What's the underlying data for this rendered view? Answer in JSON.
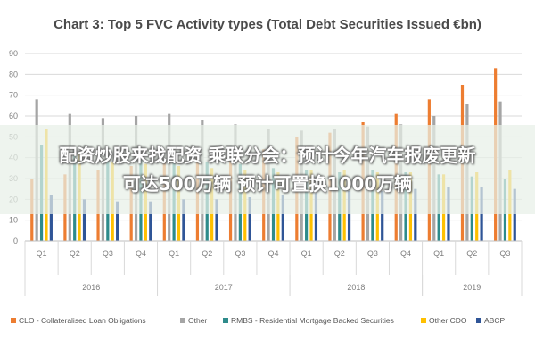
{
  "chart_data": {
    "type": "bar",
    "title": "Chart 3: Top 5 FVC Activity types (Total Debt Securities Issued €bn)",
    "ylim": [
      0,
      90
    ],
    "yticks": [
      0,
      10,
      20,
      30,
      40,
      50,
      60,
      70,
      80,
      90
    ],
    "categories": [
      "Q1",
      "Q2",
      "Q3",
      "Q4",
      "Q1",
      "Q2",
      "Q3",
      "Q4",
      "Q1",
      "Q2",
      "Q3",
      "Q4",
      "Q1",
      "Q2",
      "Q3"
    ],
    "years": [
      {
        "label": "2016",
        "quarters": 4
      },
      {
        "label": "2017",
        "quarters": 4
      },
      {
        "label": "2018",
        "quarters": 4
      },
      {
        "label": "2019",
        "quarters": 3
      }
    ],
    "grid": true,
    "legend_position": "bottom",
    "series": [
      {
        "name": "CLO - Collateralised Loan Obligations",
        "color": "#ED7D31",
        "values": [
          30,
          32,
          34,
          36,
          38,
          40,
          42,
          44,
          50,
          52,
          57,
          61,
          68,
          75,
          83
        ]
      },
      {
        "name": "Other",
        "color": "#A5A5A5",
        "values": [
          68,
          61,
          59,
          60,
          61,
          58,
          56,
          54,
          53,
          54,
          55,
          56,
          60,
          66,
          67
        ]
      },
      {
        "name": "RMBS - Residential Mortgage Backed Securities",
        "color": "#2E8B8B",
        "values": [
          46,
          44,
          41,
          40,
          39,
          38,
          37,
          35,
          34,
          33,
          34,
          33,
          32,
          31,
          30
        ]
      },
      {
        "name": "Other CDO",
        "color": "#FFC000",
        "values": [
          54,
          42,
          38,
          37,
          36,
          35,
          34,
          33,
          34,
          34,
          33,
          33,
          32,
          33,
          34
        ]
      },
      {
        "name": "ABCP",
        "color": "#2F5597",
        "values": [
          22,
          20,
          19,
          19,
          20,
          20,
          21,
          22,
          23,
          24,
          24,
          25,
          26,
          26,
          25
        ]
      }
    ]
  },
  "overlay": {
    "line1": "配资炒股来找配资 乘联分会：预计今年汽车报废更新",
    "line2": "可达500万辆 预计可置换1000万辆"
  }
}
